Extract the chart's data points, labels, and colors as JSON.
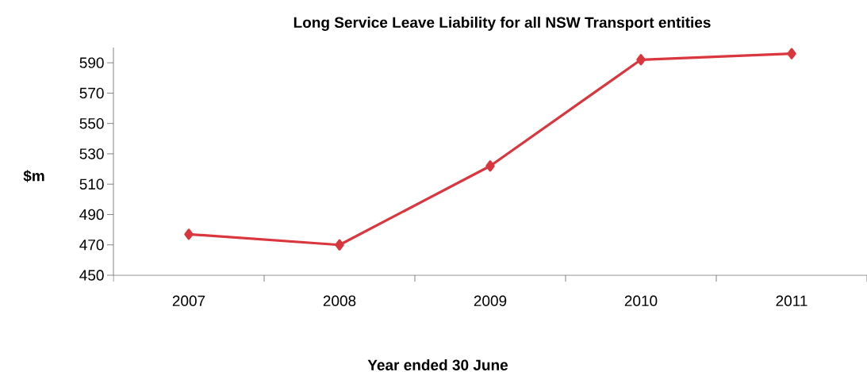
{
  "chart_data": {
    "type": "line",
    "title": "Long Service Leave Liability for all NSW Transport entities",
    "xlabel": "Year ended 30 June",
    "ylabel": "$m",
    "categories": [
      "2007",
      "2008",
      "2009",
      "2010",
      "2011"
    ],
    "series": [
      {
        "color": "#d9363e",
        "values": [
          477,
          470,
          522,
          592,
          596
        ]
      }
    ],
    "ylim": [
      450,
      600
    ],
    "yticks": [
      450,
      470,
      490,
      510,
      530,
      550,
      570,
      590
    ],
    "grid": false,
    "legend": false,
    "marker": "diamond",
    "line_style": "solid"
  }
}
